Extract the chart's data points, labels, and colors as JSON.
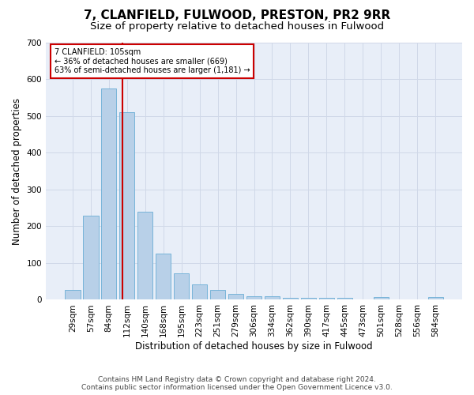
{
  "title": "7, CLANFIELD, FULWOOD, PRESTON, PR2 9RR",
  "subtitle": "Size of property relative to detached houses in Fulwood",
  "xlabel": "Distribution of detached houses by size in Fulwood",
  "ylabel": "Number of detached properties",
  "footnote": "Contains HM Land Registry data © Crown copyright and database right 2024.\nContains public sector information licensed under the Open Government Licence v3.0.",
  "bin_labels": [
    "29sqm",
    "57sqm",
    "84sqm",
    "112sqm",
    "140sqm",
    "168sqm",
    "195sqm",
    "223sqm",
    "251sqm",
    "279sqm",
    "306sqm",
    "334sqm",
    "362sqm",
    "390sqm",
    "417sqm",
    "445sqm",
    "473sqm",
    "501sqm",
    "528sqm",
    "556sqm",
    "584sqm"
  ],
  "bar_values": [
    27,
    230,
    575,
    510,
    240,
    125,
    72,
    42,
    27,
    15,
    10,
    10,
    5,
    5,
    5,
    5,
    0,
    7,
    0,
    0,
    7
  ],
  "bar_color": "#b8d0e8",
  "bar_edge_color": "#6aadd5",
  "annotation_text_line1": "7 CLANFIELD: 105sqm",
  "annotation_text_line2": "← 36% of detached houses are smaller (669)",
  "annotation_text_line3": "63% of semi-detached houses are larger (1,181) →",
  "annotation_box_color": "#ffffff",
  "annotation_box_edge_color": "#cc0000",
  "vline_color": "#cc0000",
  "ylim": [
    0,
    700
  ],
  "yticks": [
    0,
    100,
    200,
    300,
    400,
    500,
    600,
    700
  ],
  "grid_color": "#d0d8e8",
  "bg_color": "#e8eef8",
  "title_fontsize": 11,
  "subtitle_fontsize": 9.5,
  "tick_fontsize": 7.5,
  "label_fontsize": 8.5,
  "footnote_fontsize": 6.5
}
